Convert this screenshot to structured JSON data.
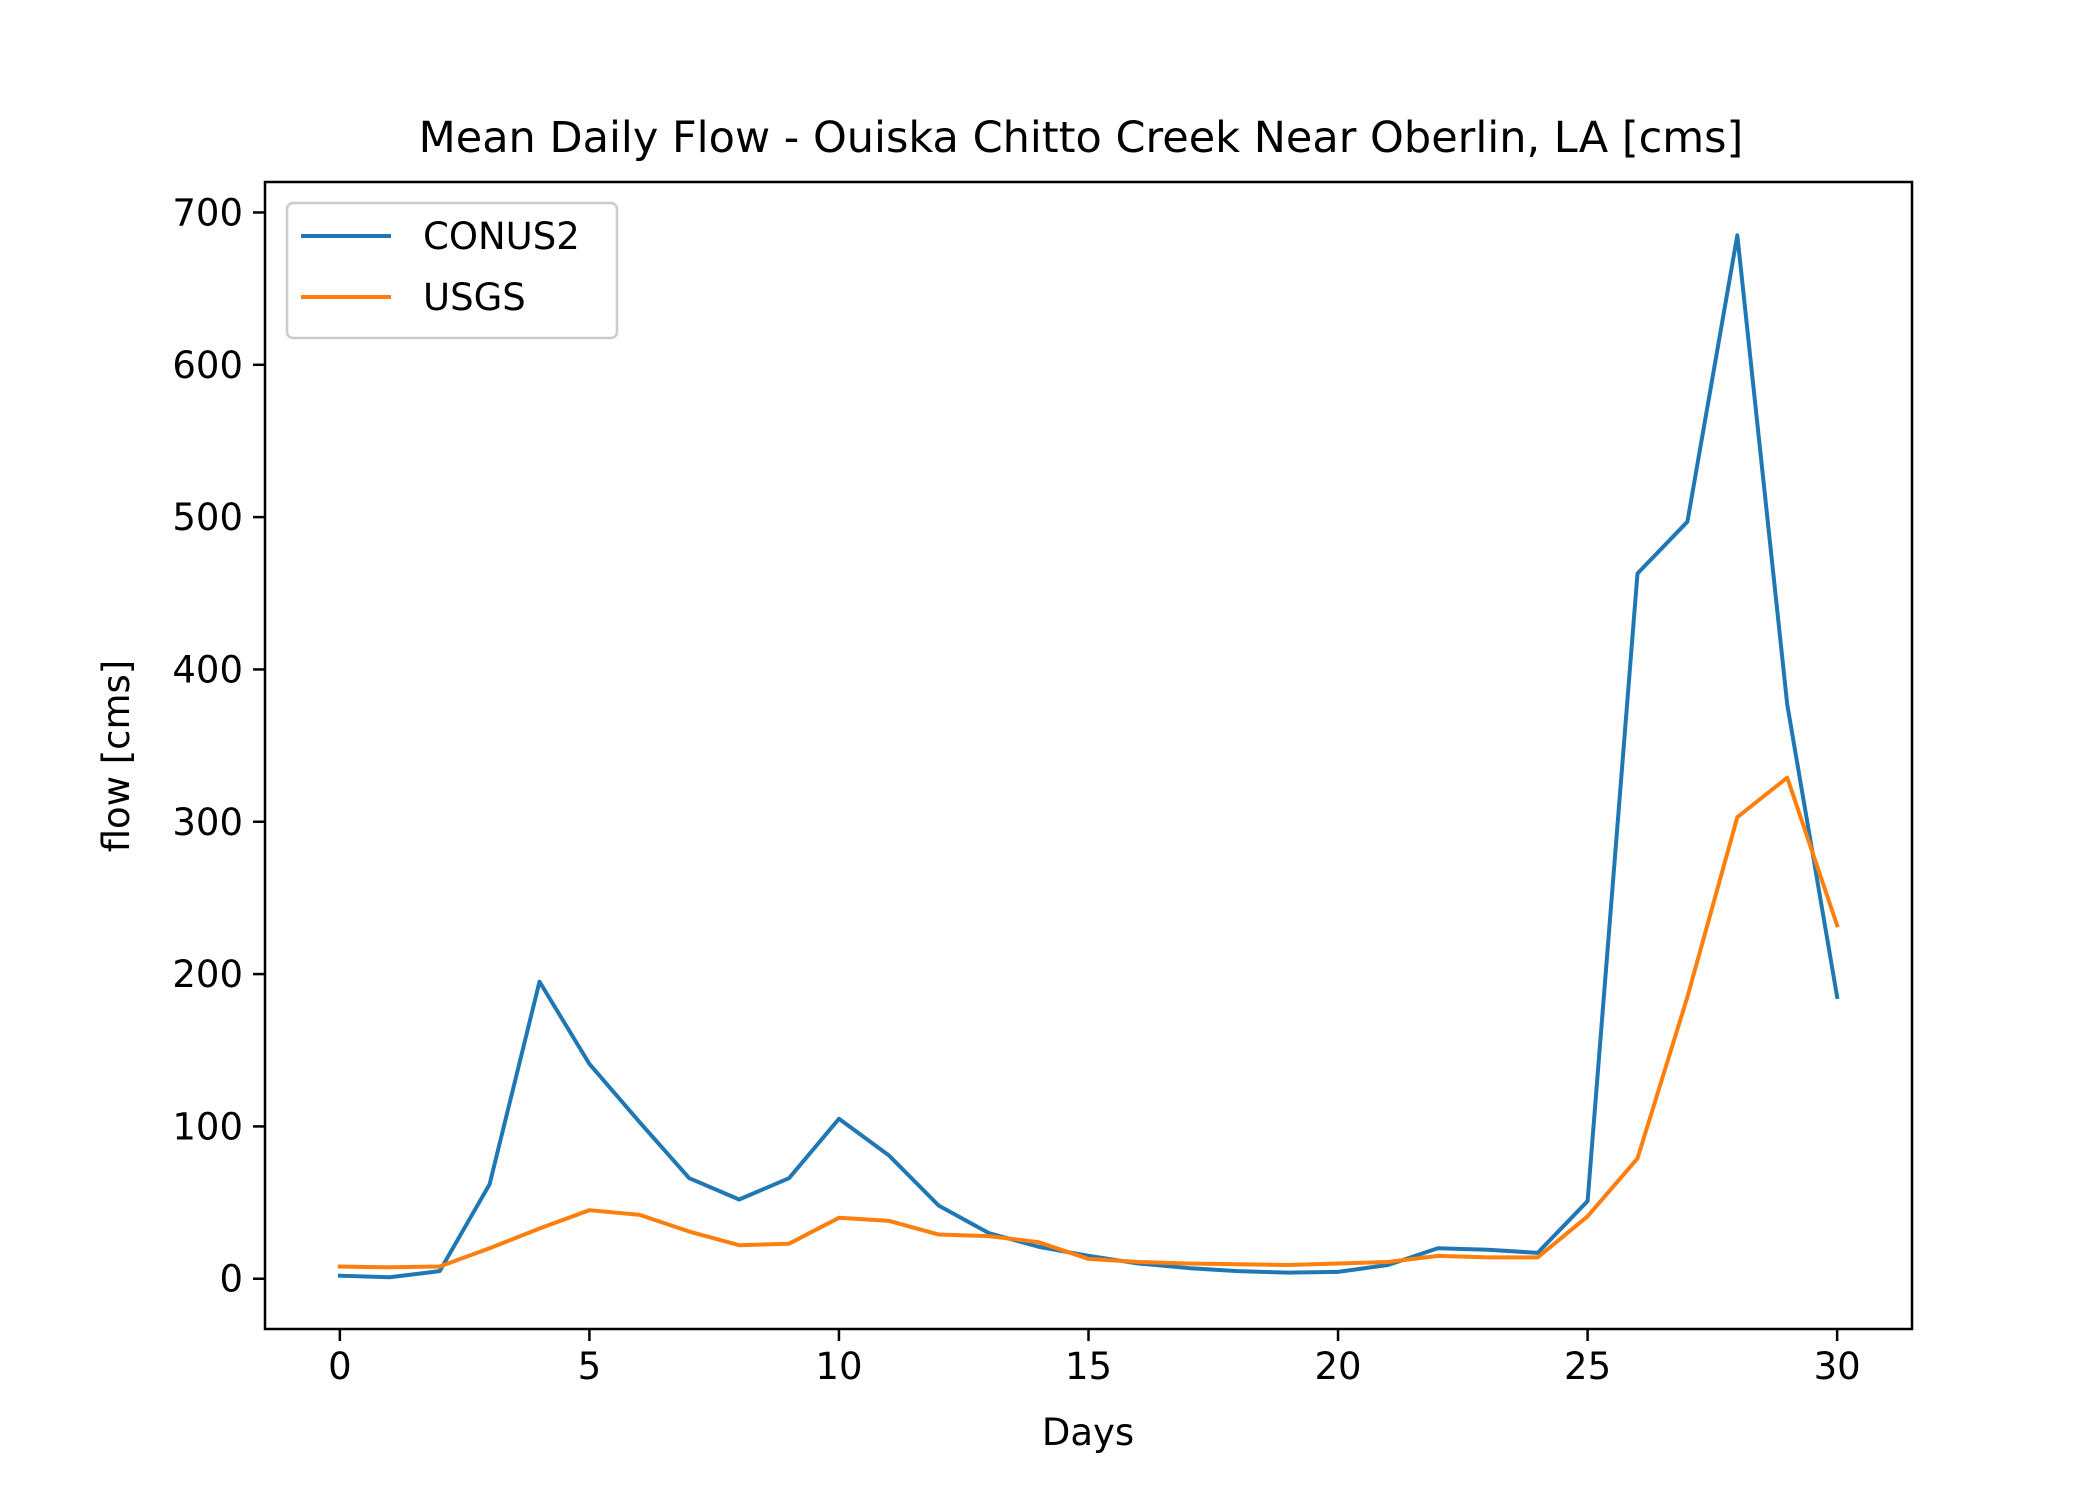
{
  "chart_data": {
    "type": "line",
    "title": "Mean Daily Flow - Ouiska Chitto Creek Near Oberlin, LA [cms]",
    "xlabel": "Days",
    "ylabel": "flow [cms]",
    "xlim": [
      -1.5,
      31.5
    ],
    "ylim": [
      -33,
      720
    ],
    "xticks": [
      0,
      5,
      10,
      15,
      20,
      25,
      30
    ],
    "yticks": [
      0,
      100,
      200,
      300,
      400,
      500,
      600,
      700
    ],
    "xtick_labels": [
      "0",
      "5",
      "10",
      "15",
      "20",
      "25",
      "30"
    ],
    "ytick_labels": [
      "0",
      "100",
      "200",
      "300",
      "400",
      "500",
      "600",
      "700"
    ],
    "grid": false,
    "legend_position": "upper-left",
    "x": [
      0,
      1,
      2,
      3,
      4,
      5,
      6,
      7,
      8,
      9,
      10,
      11,
      12,
      13,
      14,
      15,
      16,
      17,
      18,
      19,
      20,
      21,
      22,
      23,
      24,
      25,
      26,
      27,
      28,
      29,
      30
    ],
    "series": [
      {
        "name": "CONUS2",
        "color": "#1f77b4",
        "values": [
          2,
          1,
          5,
          62,
          195,
          141,
          103,
          66,
          52,
          66,
          105,
          81,
          48,
          30,
          21,
          15,
          10,
          7,
          5,
          4,
          4.5,
          9,
          20,
          19,
          17,
          51,
          463,
          497,
          685,
          377,
          185
        ]
      },
      {
        "name": "USGS",
        "color": "#ff7f0e",
        "values": [
          8,
          7.5,
          8,
          20,
          33,
          45,
          42,
          31,
          22,
          23,
          40,
          38,
          29,
          28,
          24,
          13,
          11,
          10,
          9.5,
          9,
          10,
          11,
          15,
          14,
          14,
          41,
          79,
          185,
          303,
          329,
          232
        ]
      }
    ]
  }
}
